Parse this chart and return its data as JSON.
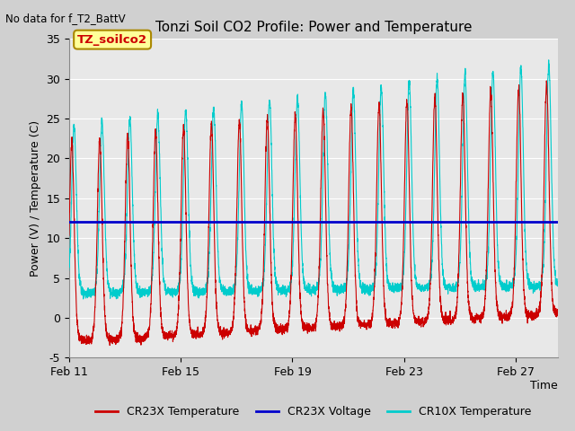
{
  "title": "Tonzi Soil CO2 Profile: Power and Temperature",
  "top_left_note": "No data for f_T2_BattV",
  "ylabel": "Power (V) / Temperature (C)",
  "xlabel": "Time",
  "ylim": [
    -5,
    35
  ],
  "yticks": [
    -5,
    0,
    5,
    10,
    15,
    20,
    25,
    30,
    35
  ],
  "xlim_days": [
    0,
    17.5
  ],
  "x_tick_labels": [
    "Feb 11",
    "Feb 15",
    "Feb 19",
    "Feb 23",
    "Feb 27"
  ],
  "x_tick_positions": [
    0,
    4,
    8,
    12,
    16
  ],
  "voltage_line_y": 12,
  "voltage_color": "#0000cc",
  "cr23x_temp_color": "#cc0000",
  "cr10x_temp_color": "#00cccc",
  "annotation_box_text": "TZ_soilco2",
  "annotation_box_color": "#ffff99",
  "annotation_box_border": "#aa8800",
  "legend_labels": [
    "CR23X Temperature",
    "CR23X Voltage",
    "CR10X Temperature"
  ],
  "legend_colors": [
    "#cc0000",
    "#0000cc",
    "#00cccc"
  ],
  "fig_bg_color": "#d0d0d0",
  "plot_bg_color": "#e8e8e8",
  "grid_color": "#ffffff",
  "spine_color": "#888888"
}
